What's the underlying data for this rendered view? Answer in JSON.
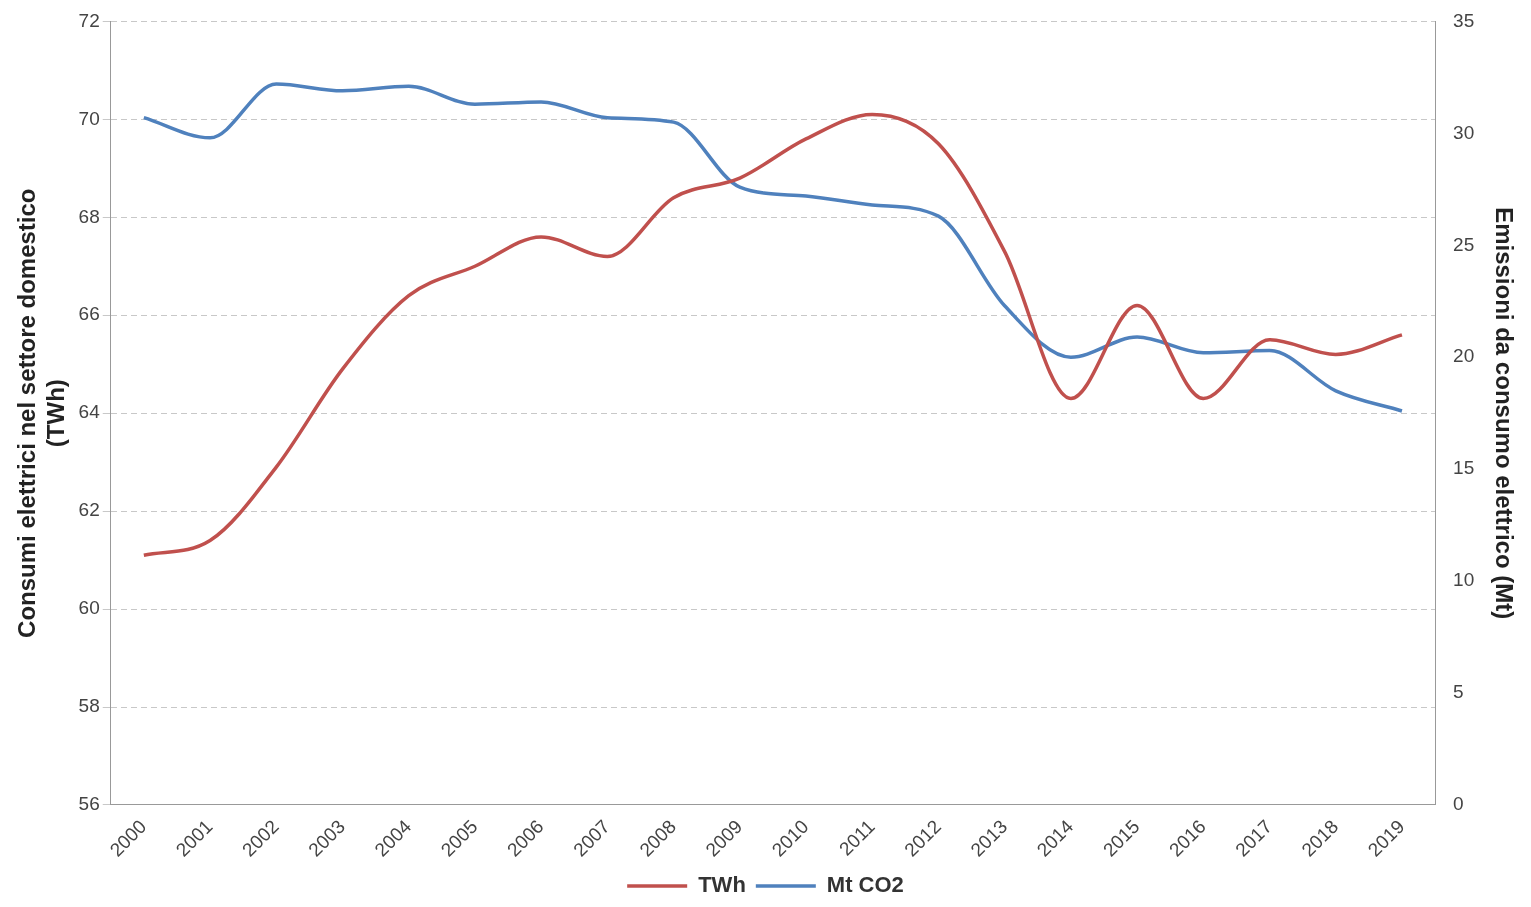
{
  "chart_data": {
    "type": "line",
    "ylabel": "Consumi elettrici nel settore domestico\n(TWh)",
    "y2label": "Emissioni da consumo elettrico (Mt)",
    "categories": [
      "2000",
      "2001",
      "2002",
      "2003",
      "2004",
      "2005",
      "2006",
      "2007",
      "2008",
      "2009",
      "2010",
      "2011",
      "2012",
      "2013",
      "2014",
      "2015",
      "2016",
      "2017",
      "2018",
      "2019"
    ],
    "series": [
      {
        "name": "TWh",
        "color": "#c0504d",
        "values": [
          61.1,
          61.4,
          62.9,
          64.9,
          66.4,
          67.0,
          67.6,
          67.2,
          68.4,
          68.8,
          69.6,
          70.1,
          69.5,
          67.3,
          64.3,
          66.2,
          64.3,
          65.5,
          65.2,
          65.6
        ]
      },
      {
        "name": "Mt CO2",
        "color": "#4f81bd",
        "axis": "y2",
        "values": [
          30.7,
          29.8,
          32.2,
          31.9,
          32.1,
          31.3,
          31.4,
          30.7,
          30.5,
          27.6,
          27.2,
          26.8,
          26.3,
          22.3,
          20.0,
          20.9,
          20.2,
          20.3,
          18.5,
          17.6
        ]
      }
    ],
    "ylim": [
      56,
      72
    ],
    "yticks": [
      56,
      58,
      60,
      62,
      64,
      66,
      68,
      70,
      72
    ],
    "y2lim": [
      0,
      35
    ],
    "y2ticks": [
      0,
      5,
      10,
      15,
      20,
      25,
      30,
      35
    ],
    "grid": "y",
    "legend": "bottom",
    "marker": "none",
    "line_style": "solid"
  }
}
